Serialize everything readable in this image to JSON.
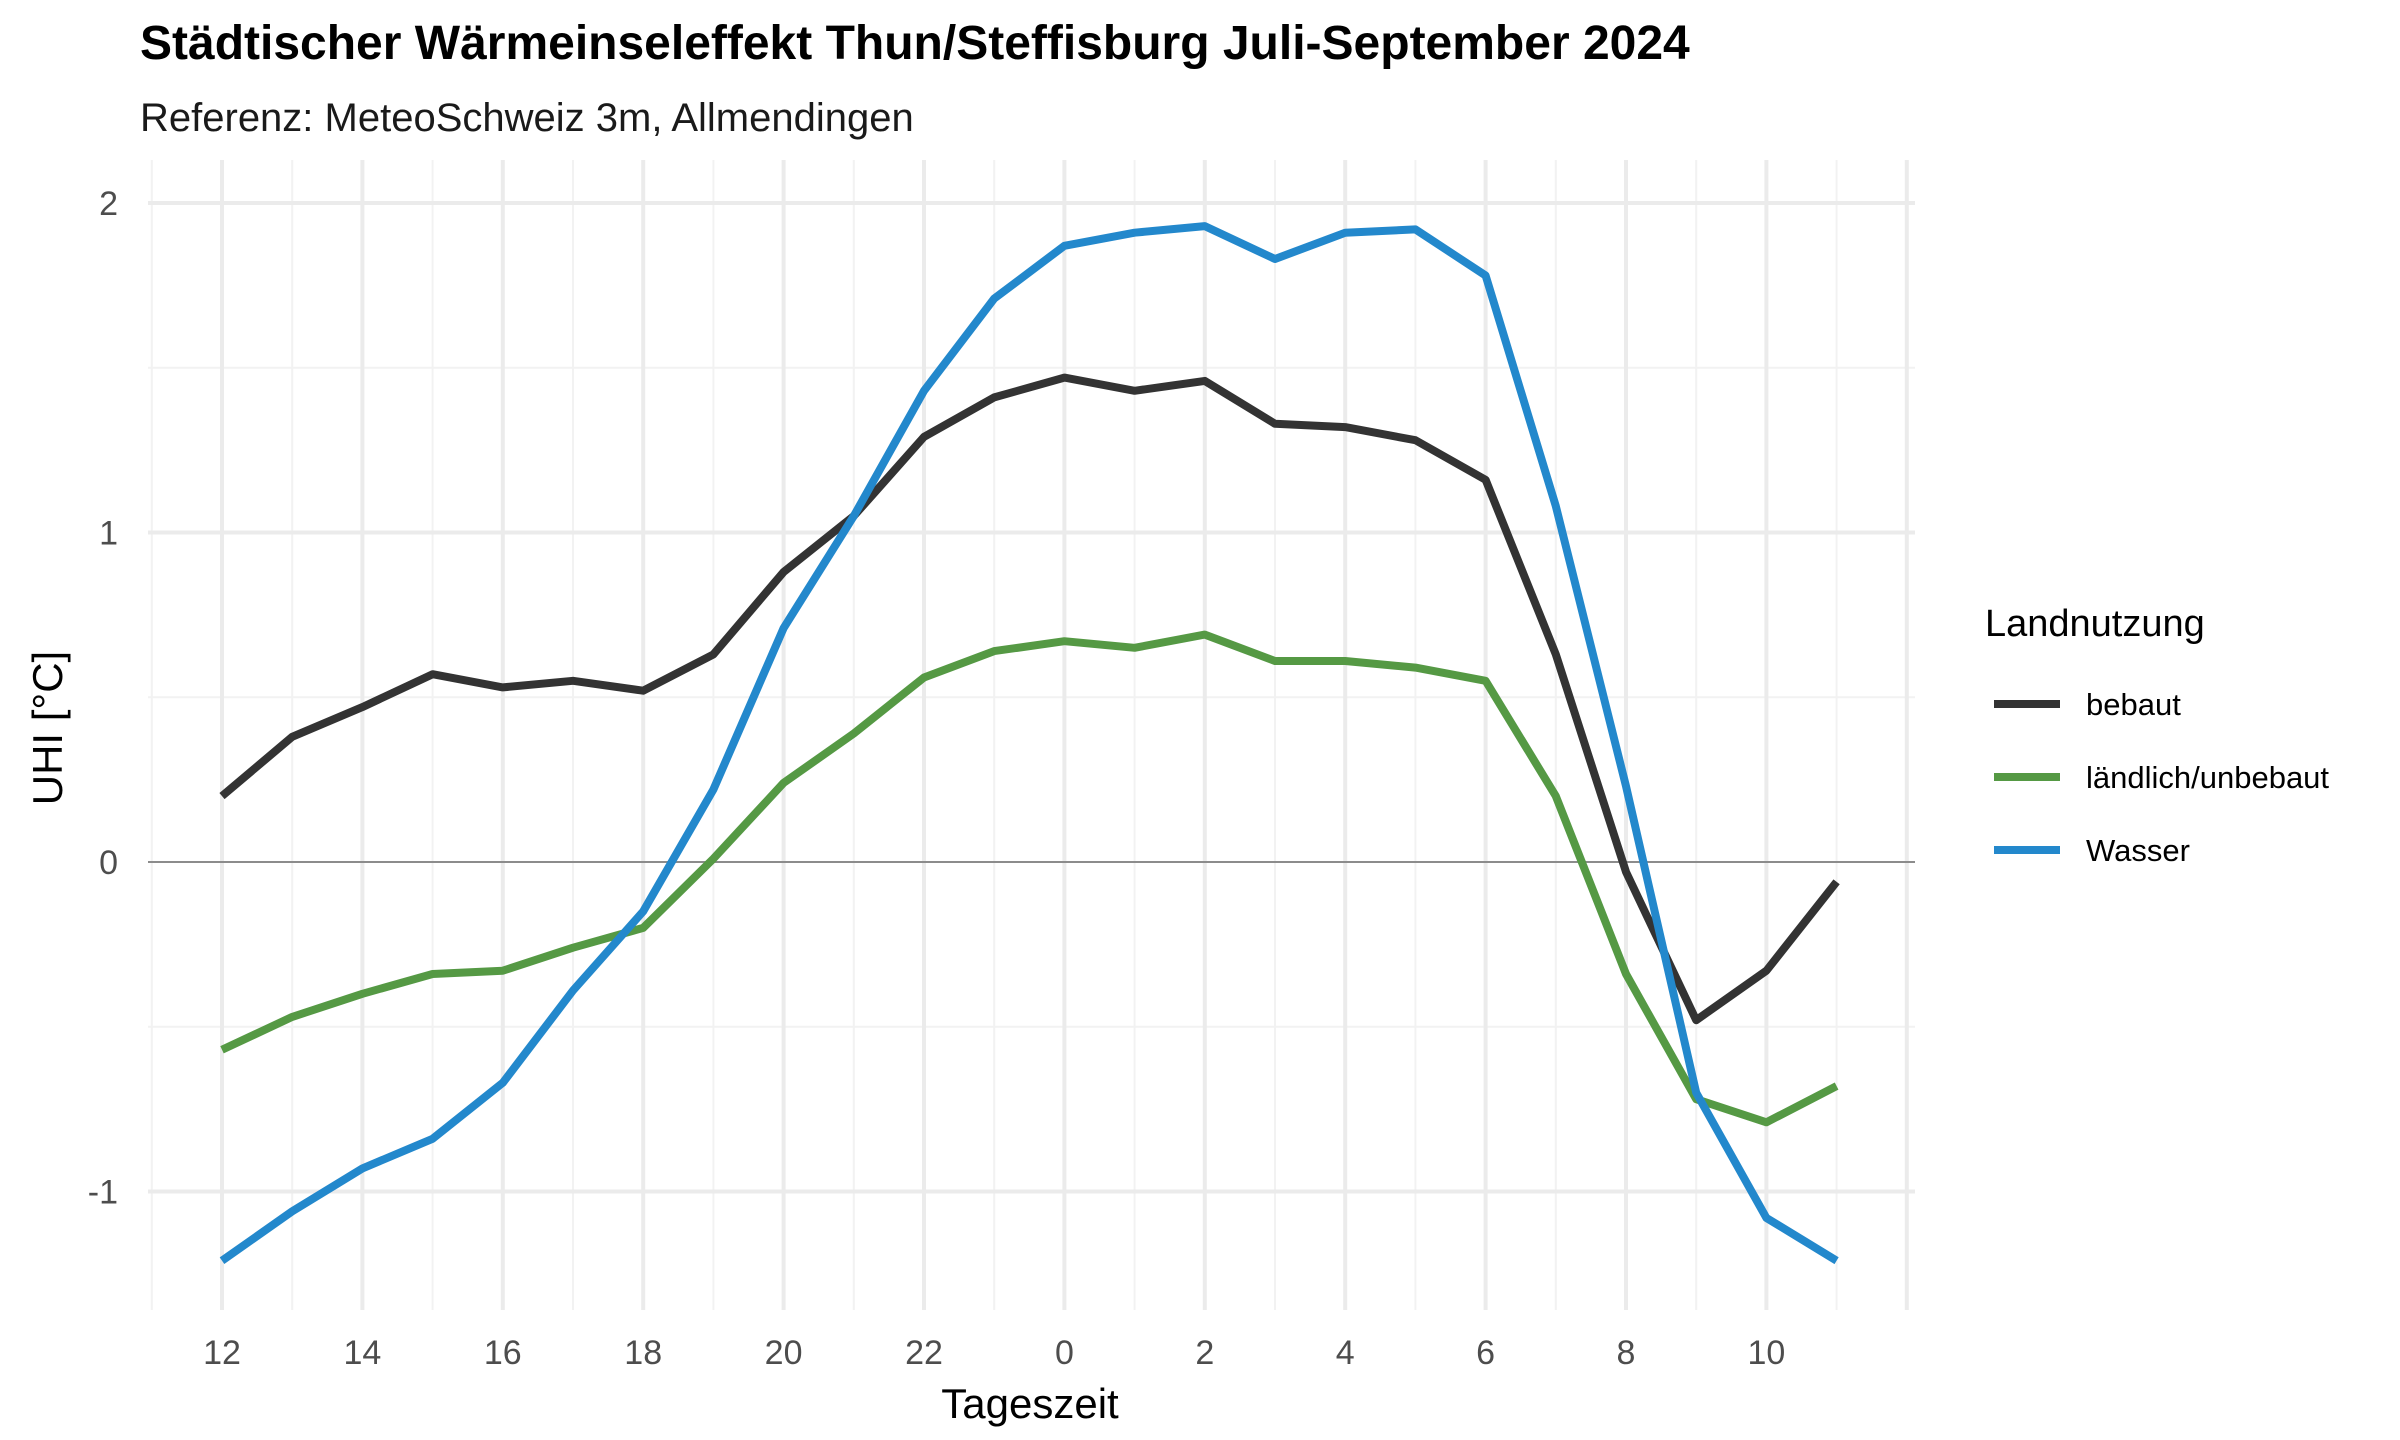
{
  "chart_data": {
    "type": "line",
    "title": "Städtischer Wärmeinseleffekt Thun/Steffisburg Juli-September 2024",
    "subtitle": "Referenz: MeteoSchweiz 3m, Allmendingen",
    "xlabel": "Tageszeit",
    "ylabel": "UHI [°C]",
    "x": [
      12,
      13,
      14,
      15,
      16,
      17,
      18,
      19,
      20,
      21,
      22,
      23,
      0,
      1,
      2,
      3,
      4,
      5,
      6,
      7,
      8,
      9,
      10,
      11
    ],
    "x_tick_labels": [
      "12",
      "14",
      "16",
      "18",
      "20",
      "22",
      "0",
      "2",
      "4",
      "6",
      "8",
      "10"
    ],
    "y_ticks": [
      -1,
      0,
      1,
      2
    ],
    "y_tick_labels": [
      "-1",
      "0",
      "1",
      "2"
    ],
    "ylim": [
      -1.35,
      2.05
    ],
    "grid": true,
    "legend": {
      "title": "Landnutzung",
      "position": "right"
    },
    "series": [
      {
        "name": "bebaut",
        "color": "#333333",
        "values": [
          0.2,
          0.38,
          0.47,
          0.57,
          0.53,
          0.55,
          0.52,
          0.63,
          0.88,
          1.05,
          1.29,
          1.41,
          1.47,
          1.43,
          1.46,
          1.33,
          1.32,
          1.28,
          1.16,
          0.63,
          -0.03,
          -0.48,
          -0.33,
          -0.06
        ]
      },
      {
        "name": "ländlich/unbebaut",
        "color": "#559944",
        "values": [
          -0.57,
          -0.47,
          -0.4,
          -0.34,
          -0.33,
          -0.26,
          -0.2,
          0.01,
          0.24,
          0.39,
          0.56,
          0.64,
          0.67,
          0.65,
          0.69,
          0.61,
          0.61,
          0.59,
          0.55,
          0.2,
          -0.34,
          -0.72,
          -0.79,
          -0.68
        ]
      },
      {
        "name": "Wasser",
        "color": "#2388cc",
        "values": [
          -1.21,
          -1.06,
          -0.93,
          -0.84,
          -0.67,
          -0.39,
          -0.15,
          0.22,
          0.71,
          1.05,
          1.43,
          1.71,
          1.87,
          1.91,
          1.93,
          1.83,
          1.91,
          1.92,
          1.78,
          1.08,
          0.23,
          -0.7,
          -1.08,
          -1.21
        ]
      }
    ]
  }
}
